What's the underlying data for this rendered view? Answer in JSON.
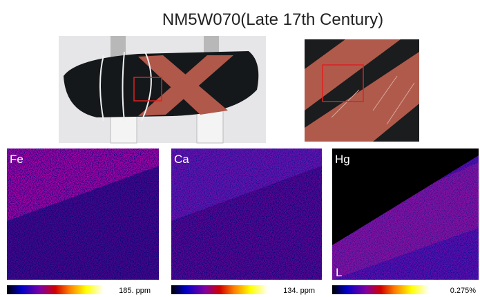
{
  "title": "NM5W070(Late 17th Century)",
  "maps": [
    {
      "element": "Fe",
      "scale_label": "185. ppm"
    },
    {
      "element": "Ca",
      "scale_label": "134. ppm"
    },
    {
      "element": "Hg",
      "scale_label": "0.275%",
      "corner_label": "L"
    }
  ]
}
